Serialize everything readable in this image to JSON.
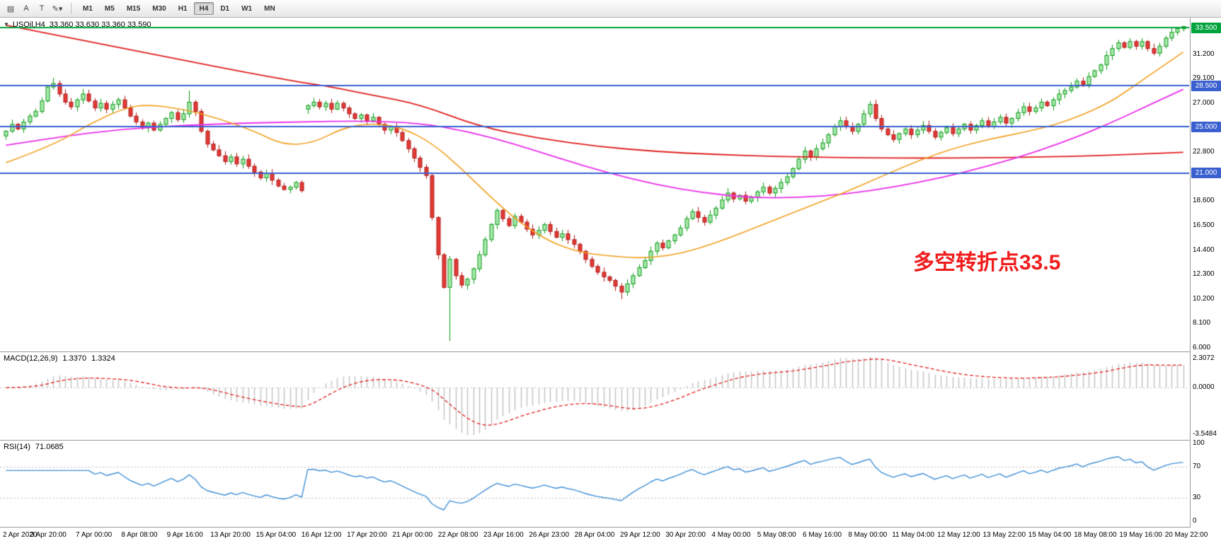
{
  "toolbar": {
    "left_icons": [
      {
        "name": "chart-grid-icon",
        "glyph": "▤"
      },
      {
        "name": "insert-text-a-icon",
        "glyph": "A"
      },
      {
        "name": "insert-text-t-icon",
        "glyph": "T"
      },
      {
        "name": "draw-tools-icon",
        "glyph": "✎▾"
      }
    ],
    "timeframes": [
      {
        "label": "M1",
        "active": false
      },
      {
        "label": "M5",
        "active": false
      },
      {
        "label": "M15",
        "active": false
      },
      {
        "label": "M30",
        "active": false
      },
      {
        "label": "H1",
        "active": false
      },
      {
        "label": "H4",
        "active": true
      },
      {
        "label": "D1",
        "active": false
      },
      {
        "label": "W1",
        "active": false
      },
      {
        "label": "MN",
        "active": false
      }
    ]
  },
  "main_chart": {
    "header": {
      "collapse_glyph": "▼",
      "symbol": "USOil,H4",
      "ohlc": "33.360 33.630 33.360 33.590"
    },
    "price_axis": {
      "ticks": [
        {
          "label": "31.200",
          "value": 31.2
        },
        {
          "label": "29.100",
          "value": 29.1
        },
        {
          "label": "27.000",
          "value": 27.0
        },
        {
          "label": "22.800",
          "value": 22.8
        },
        {
          "label": "18.600",
          "value": 18.6
        },
        {
          "label": "16.500",
          "value": 16.5
        },
        {
          "label": "14.400",
          "value": 14.4
        },
        {
          "label": "12.300",
          "value": 12.3
        },
        {
          "label": "10.200",
          "value": 10.2
        },
        {
          "label": "8.100",
          "value": 8.1
        },
        {
          "label": "6.000",
          "value": 6.0
        }
      ],
      "badges": [
        {
          "label": "33.500",
          "value": 33.5,
          "color": "#00a33c"
        },
        {
          "label": "28.500",
          "value": 28.5,
          "color": "#3a60d0"
        },
        {
          "label": "25.000",
          "value": 25.0,
          "color": "#3a60d0"
        },
        {
          "label": "21.000",
          "value": 21.0,
          "color": "#3a60d0"
        }
      ]
    },
    "annotation": {
      "text": "多空转折点33.5",
      "color": "#f01c1c"
    }
  },
  "panels": {
    "macd": {
      "name": "MACD(12,26,9)",
      "value_main": "1.3370",
      "value_signal": "1.3324",
      "axis_labels": [
        "2.3072",
        "0.0000",
        "-3.5484"
      ]
    },
    "rsi": {
      "name": "RSI(14)",
      "value": "71.0685",
      "axis_labels": [
        {
          "label": "100",
          "value": 100
        },
        {
          "label": "70",
          "value": 70
        },
        {
          "label": "30",
          "value": 30
        },
        {
          "label": "0",
          "value": 0
        }
      ]
    }
  },
  "chart_data": {
    "type": "candlestick",
    "symbol": "USOil",
    "timeframe": "H4",
    "current_bar": {
      "open": 33.36,
      "high": 33.63,
      "low": 33.36,
      "close": 33.59
    },
    "price_range": {
      "min": 5.7,
      "max": 34.35
    },
    "closes": [
      24.6,
      25.2,
      24.8,
      25.4,
      25.9,
      26.3,
      27.2,
      28.4,
      28.7,
      27.8,
      27.1,
      26.7,
      27.3,
      27.8,
      27.2,
      26.6,
      27.0,
      26.5,
      26.9,
      27.3,
      26.6,
      25.9,
      25.4,
      24.9,
      25.3,
      24.7,
      25.2,
      25.7,
      26.2,
      25.6,
      26.1,
      27.1,
      26.3,
      24.6,
      23.5,
      23.0,
      22.5,
      22.0,
      22.4,
      21.8,
      22.2,
      21.6,
      21.1,
      20.6,
      21.0,
      20.4,
      19.9,
      19.6,
      19.8,
      20.2,
      19.5,
      26.8,
      27.1,
      26.7,
      27.0,
      26.5,
      27.0,
      26.6,
      26.1,
      25.7,
      26.0,
      25.5,
      25.8,
      25.2,
      24.7,
      25.0,
      24.5,
      23.8,
      23.1,
      22.3,
      21.5,
      20.8,
      17.2,
      14.0,
      11.2,
      13.6,
      12.2,
      11.4,
      11.9,
      12.8,
      14.0,
      15.3,
      16.6,
      17.8,
      17.1,
      16.5,
      17.3,
      16.8,
      16.2,
      15.7,
      16.1,
      16.6,
      16.0,
      15.5,
      15.8,
      15.3,
      14.9,
      14.3,
      13.6,
      13.0,
      12.5,
      12.1,
      11.8,
      11.3,
      10.8,
      11.5,
      12.2,
      12.9,
      13.5,
      14.3,
      15.0,
      14.6,
      15.2,
      15.7,
      16.3,
      17.1,
      17.7,
      17.2,
      16.8,
      17.4,
      18.0,
      18.7,
      19.3,
      18.8,
      19.1,
      18.6,
      18.9,
      19.4,
      19.8,
      19.3,
      19.7,
      20.2,
      20.7,
      21.4,
      22.2,
      22.9,
      22.4,
      23.1,
      23.6,
      24.3,
      25.0,
      25.5,
      25.0,
      24.6,
      25.2,
      26.1,
      26.9,
      25.7,
      24.8,
      24.3,
      23.9,
      24.4,
      24.8,
      24.3,
      24.7,
      25.1,
      24.6,
      24.1,
      24.5,
      24.9,
      24.4,
      24.8,
      25.2,
      24.7,
      25.1,
      25.5,
      25.0,
      25.4,
      25.8,
      25.3,
      25.7,
      26.2,
      26.7,
      26.3,
      26.6,
      27.1,
      26.8,
      27.3,
      27.8,
      28.1,
      28.4,
      28.9,
      28.6,
      29.3,
      29.8,
      30.3,
      31.1,
      31.7,
      32.2,
      31.8,
      32.3,
      31.9,
      32.3,
      31.7,
      31.3,
      31.9,
      32.6,
      33.1,
      33.4,
      33.59
    ],
    "spike_lows": {
      "75": 6.6,
      "104": 10.2
    },
    "spike_highs": {
      "8": 29.2,
      "31": 28.1,
      "146": 27.2
    },
    "gap_opens": {
      "51": 26.5
    },
    "hlines": [
      {
        "price": 33.5,
        "color": "#00a33c",
        "width": 2
      },
      {
        "price": 28.5,
        "color": "#3a60d0",
        "width": 2
      },
      {
        "price": 25.0,
        "color": "#3a60d0",
        "width": 2
      },
      {
        "price": 21.0,
        "color": "#3a60d0",
        "width": 2
      }
    ],
    "ma_lines": [
      {
        "name": "ma-slow-red",
        "color": "#e01f1f",
        "width": 1.8,
        "points": [
          [
            0,
            33.7
          ],
          [
            10,
            32.7
          ],
          [
            20,
            31.7
          ],
          [
            30,
            30.7
          ],
          [
            40,
            29.7
          ],
          [
            50,
            28.8
          ],
          [
            55,
            28.4
          ],
          [
            62,
            27.7
          ],
          [
            70,
            26.9
          ],
          [
            80,
            25.0
          ],
          [
            90,
            24.0
          ],
          [
            100,
            23.3
          ],
          [
            110,
            22.85
          ],
          [
            120,
            22.6
          ],
          [
            130,
            22.45
          ],
          [
            140,
            22.35
          ],
          [
            150,
            22.3
          ],
          [
            160,
            22.3
          ],
          [
            170,
            22.35
          ],
          [
            180,
            22.45
          ],
          [
            190,
            22.6
          ],
          [
            199,
            22.8
          ]
        ]
      },
      {
        "name": "ma-mid-magenta",
        "color": "#ea30ea",
        "width": 1.8,
        "points": [
          [
            0,
            23.4
          ],
          [
            10,
            24.2
          ],
          [
            20,
            24.8
          ],
          [
            30,
            25.1
          ],
          [
            40,
            25.3
          ],
          [
            50,
            25.4
          ],
          [
            60,
            25.5
          ],
          [
            70,
            25.3
          ],
          [
            78,
            24.6
          ],
          [
            86,
            23.5
          ],
          [
            94,
            22.2
          ],
          [
            102,
            21.0
          ],
          [
            110,
            20.0
          ],
          [
            118,
            19.3
          ],
          [
            126,
            18.9
          ],
          [
            134,
            18.9
          ],
          [
            142,
            19.2
          ],
          [
            150,
            19.8
          ],
          [
            158,
            20.6
          ],
          [
            166,
            21.6
          ],
          [
            174,
            22.8
          ],
          [
            182,
            24.3
          ],
          [
            188,
            25.6
          ],
          [
            193,
            26.8
          ],
          [
            199,
            28.2
          ]
        ]
      },
      {
        "name": "ma-fast-orange",
        "color": "#f0a01e",
        "width": 1.6,
        "points": [
          [
            0,
            21.9
          ],
          [
            8,
            23.4
          ],
          [
            14,
            25.2
          ],
          [
            20,
            26.6
          ],
          [
            24,
            26.9
          ],
          [
            30,
            26.5
          ],
          [
            36,
            25.7
          ],
          [
            42,
            24.6
          ],
          [
            47,
            23.4
          ],
          [
            52,
            23.6
          ],
          [
            57,
            24.9
          ],
          [
            62,
            25.3
          ],
          [
            67,
            24.9
          ],
          [
            72,
            23.6
          ],
          [
            77,
            21.4
          ],
          [
            82,
            18.9
          ],
          [
            87,
            16.7
          ],
          [
            92,
            15.1
          ],
          [
            97,
            14.2
          ],
          [
            102,
            13.9
          ],
          [
            107,
            13.7
          ],
          [
            112,
            13.9
          ],
          [
            117,
            14.5
          ],
          [
            122,
            15.4
          ],
          [
            127,
            16.4
          ],
          [
            132,
            17.4
          ],
          [
            137,
            18.4
          ],
          [
            142,
            19.4
          ],
          [
            147,
            20.5
          ],
          [
            152,
            21.6
          ],
          [
            157,
            22.6
          ],
          [
            162,
            23.4
          ],
          [
            167,
            24.0
          ],
          [
            172,
            24.5
          ],
          [
            177,
            25.1
          ],
          [
            182,
            26.0
          ],
          [
            187,
            27.2
          ],
          [
            191,
            28.6
          ],
          [
            195,
            30.0
          ],
          [
            199,
            31.4
          ]
        ]
      }
    ],
    "macd": {
      "fast": 12,
      "slow": 26,
      "signal": 9
    },
    "rsi": {
      "period": 14,
      "levels": [
        70,
        30
      ]
    },
    "time_labels": [
      "2 Apr 2020",
      "3 Apr 20:00",
      "7 Apr 00:00",
      "8 Apr 08:00",
      "9 Apr 16:00",
      "13 Apr 20:00",
      "15 Apr 04:00",
      "16 Apr 12:00",
      "17 Apr 20:00",
      "21 Apr 00:00",
      "22 Apr 08:00",
      "23 Apr 16:00",
      "26 Apr 23:00",
      "28 Apr 04:00",
      "29 Apr 12:00",
      "30 Apr 20:00",
      "4 May 00:00",
      "5 May 08:00",
      "6 May 16:00",
      "8 May 00:00",
      "11 May 04:00",
      "12 May 12:00",
      "13 May 22:00",
      "15 May 04:00",
      "18 May 08:00",
      "19 May 16:00",
      "20 May 22:00"
    ]
  },
  "colors": {
    "up_stroke": "#0a9a15",
    "up_fill": "#a8e8ad",
    "down_stroke": "#b01a1a",
    "down_fill": "#e23b35",
    "macd_hist": "#c4c4c4",
    "macd_signal": "#e01f1f",
    "macd_zero": "#bdbdbd",
    "rsi_line": "#3f8fd6",
    "rsi_level": "#b8b8b8"
  }
}
